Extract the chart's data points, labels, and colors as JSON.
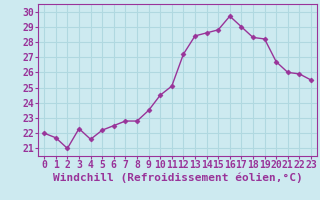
{
  "x": [
    0,
    1,
    2,
    3,
    4,
    5,
    6,
    7,
    8,
    9,
    10,
    11,
    12,
    13,
    14,
    15,
    16,
    17,
    18,
    19,
    20,
    21,
    22,
    23
  ],
  "y": [
    22.0,
    21.7,
    21.0,
    22.3,
    21.6,
    22.2,
    22.5,
    22.8,
    22.8,
    23.5,
    24.5,
    25.1,
    27.2,
    28.4,
    28.6,
    28.8,
    29.7,
    29.0,
    28.3,
    28.2,
    26.7,
    26.0,
    25.9,
    25.5
  ],
  "line_color": "#993399",
  "marker": "D",
  "marker_size": 2.5,
  "xlabel": "Windchill (Refroidissement éolien,°C)",
  "xlabel_fontsize": 8,
  "ylabel_ticks": [
    21,
    22,
    23,
    24,
    25,
    26,
    27,
    28,
    29,
    30
  ],
  "xticks": [
    0,
    1,
    2,
    3,
    4,
    5,
    6,
    7,
    8,
    9,
    10,
    11,
    12,
    13,
    14,
    15,
    16,
    17,
    18,
    19,
    20,
    21,
    22,
    23
  ],
  "ylim": [
    20.5,
    30.5
  ],
  "xlim": [
    -0.5,
    23.5
  ],
  "bg_color": "#cdeaf0",
  "grid_color": "#b0d8e0",
  "tick_fontsize": 7,
  "linewidth": 1.0
}
